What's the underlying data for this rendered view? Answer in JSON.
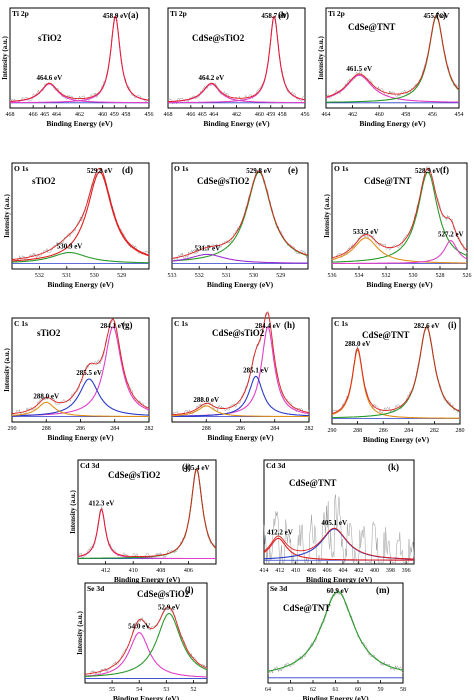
{
  "colors": {
    "pink": "#e040c8",
    "green": "#2a9a2a",
    "red": "#e02020",
    "blue": "#2a3cc8",
    "purple": "#9a30d0",
    "orange": "#e0901a",
    "grey": "#9a9a9a",
    "black": "#000000"
  },
  "chart_data": [
    {
      "type": "line",
      "panel_label": "(a)",
      "element": "Ti 2p",
      "sample": "sTiO2",
      "xlabel": "Binding Energy (eV)",
      "ylabel": "Intensity (a.u.)",
      "xlim": [
        468,
        456
      ],
      "xticks": [
        468,
        466,
        465,
        464,
        462,
        460,
        459,
        458,
        456
      ],
      "ymax": 1.1,
      "peaks": [
        {
          "center": 464.6,
          "height": 0.22,
          "width": 0.9,
          "color": "pink"
        },
        {
          "center": 458.9,
          "height": 1.0,
          "width": 0.5,
          "color": "pink"
        }
      ],
      "annotations": [
        {
          "text": "464.6 eV",
          "x": 464.6
        },
        {
          "text": "458.9 eV",
          "x": 458.9
        }
      ]
    },
    {
      "type": "line",
      "panel_label": "(b)",
      "element": "Ti 2p",
      "sample": "CdSe@sTiO2",
      "xlabel": "Binding Energy (eV)",
      "ylabel": "",
      "xlim": [
        468,
        456
      ],
      "xticks": [
        468,
        466,
        465,
        464,
        462,
        460,
        459,
        458,
        456
      ],
      "ymax": 1.1,
      "peaks": [
        {
          "center": 464.2,
          "height": 0.22,
          "width": 0.9,
          "color": "pink"
        },
        {
          "center": 458.7,
          "height": 1.0,
          "width": 0.5,
          "color": "pink"
        }
      ],
      "annotations": [
        {
          "text": "464.2 eV",
          "x": 464.2
        },
        {
          "text": "458.7 eV",
          "x": 458.7
        }
      ]
    },
    {
      "type": "line",
      "panel_label": "(c)",
      "element": "Ti 2p",
      "sample": "CdSe@TNT",
      "xlabel": "Binding Energy (eV)",
      "ylabel": "Intensity (a.u.)",
      "xlim": [
        464,
        454
      ],
      "xticks": [
        464,
        462,
        460,
        458,
        456,
        454
      ],
      "ymax": 1.1,
      "peaks": [
        {
          "center": 461.5,
          "height": 0.32,
          "width": 1.2,
          "color": "pink"
        },
        {
          "center": 455.7,
          "height": 1.0,
          "width": 0.7,
          "color": "green"
        }
      ],
      "annotations": [
        {
          "text": "461.5 eV",
          "x": 461.5
        },
        {
          "text": "455.7 eV",
          "x": 455.7
        }
      ]
    },
    {
      "type": "line",
      "panel_label": "(d)",
      "element": "O 1s",
      "sample": "sTiO2",
      "xlabel": "Binding Energy (eV)",
      "ylabel": "Intensity (a.u.)",
      "xlim": [
        533,
        528
      ],
      "xticks": [
        532,
        531,
        530,
        529
      ],
      "ymax": 1.1,
      "peaks": [
        {
          "center": 529.8,
          "height": 1.0,
          "width": 0.55,
          "color": "red"
        },
        {
          "center": 530.9,
          "height": 0.12,
          "width": 0.8,
          "color": "green"
        }
      ],
      "annotations": [
        {
          "text": "529.8 eV",
          "x": 529.8
        },
        {
          "text": "530.9 eV",
          "x": 530.9
        }
      ]
    },
    {
      "type": "line",
      "panel_label": "(e)",
      "element": "O 1s",
      "sample": "CdSe@sTiO2",
      "xlabel": "Binding Energy (eV)",
      "ylabel": "",
      "xlim": [
        533,
        528
      ],
      "xticks": [
        533,
        532,
        531,
        530,
        529
      ],
      "ymax": 1.1,
      "peaks": [
        {
          "center": 529.8,
          "height": 1.0,
          "width": 0.55,
          "color": "green"
        },
        {
          "center": 531.7,
          "height": 0.1,
          "width": 0.8,
          "color": "purple"
        }
      ],
      "annotations": [
        {
          "text": "529.8 eV",
          "x": 529.8
        },
        {
          "text": "531.7 eV",
          "x": 531.7
        }
      ]
    },
    {
      "type": "line",
      "panel_label": "(f)",
      "element": "O 1s",
      "sample": "CdSe@TNT",
      "xlabel": "Binding Energy (eV)",
      "ylabel": "Intensity (a.u.)",
      "xlim": [
        536,
        526
      ],
      "xticks": [
        536,
        534,
        532,
        530,
        528,
        526
      ],
      "ymax": 1.1,
      "peaks": [
        {
          "center": 528.9,
          "height": 1.0,
          "width": 0.9,
          "color": "green"
        },
        {
          "center": 533.5,
          "height": 0.28,
          "width": 1.1,
          "color": "orange"
        },
        {
          "center": 527.2,
          "height": 0.25,
          "width": 0.6,
          "color": "pink"
        }
      ],
      "annotations": [
        {
          "text": "528.9 eV",
          "x": 528.9
        },
        {
          "text": "533.5 eV",
          "x": 533.5
        },
        {
          "text": "527.2 eV",
          "x": 527.2
        }
      ]
    },
    {
      "type": "line",
      "panel_label": "(g)",
      "element": "C 1s",
      "sample": "sTiO2",
      "xlabel": "Binding Energy (eV)",
      "ylabel": "Intensity (a.u.)",
      "xlim": [
        290,
        282
      ],
      "xticks": [
        290,
        288,
        286,
        284,
        282
      ],
      "ymax": 1.1,
      "peaks": [
        {
          "center": 284.1,
          "height": 1.0,
          "width": 0.6,
          "color": "pink"
        },
        {
          "center": 285.5,
          "height": 0.42,
          "width": 0.7,
          "color": "blue"
        },
        {
          "center": 288.0,
          "height": 0.16,
          "width": 0.6,
          "color": "orange"
        }
      ],
      "annotations": [
        {
          "text": "284.1 eV",
          "x": 284.1
        },
        {
          "text": "285.5 eV",
          "x": 285.5
        },
        {
          "text": "288.0 eV",
          "x": 288.0
        }
      ]
    },
    {
      "type": "line",
      "panel_label": "(h)",
      "element": "C 1s",
      "sample": "CdSe@sTiO2",
      "xlabel": "Binding Energy (eV)",
      "ylabel": "",
      "xlim": [
        290,
        282
      ],
      "xticks": [
        288,
        286,
        284,
        282
      ],
      "ymax": 1.1,
      "peaks": [
        {
          "center": 284.4,
          "height": 1.0,
          "width": 0.45,
          "color": "pink"
        },
        {
          "center": 285.1,
          "height": 0.45,
          "width": 0.5,
          "color": "blue"
        },
        {
          "center": 288.0,
          "height": 0.12,
          "width": 0.6,
          "color": "orange"
        }
      ],
      "annotations": [
        {
          "text": "284.4 eV",
          "x": 284.4
        },
        {
          "text": "285.1 eV",
          "x": 285.1
        },
        {
          "text": "288.0 eV",
          "x": 288.0
        }
      ]
    },
    {
      "type": "line",
      "panel_label": "(i)",
      "element": "C 1s",
      "sample": "CdSe@TNT",
      "xlabel": "Binding Energy (eV)",
      "ylabel": "",
      "xlim": [
        290,
        280
      ],
      "xticks": [
        290,
        288,
        286,
        284,
        282,
        280
      ],
      "ymax": 1.1,
      "peaks": [
        {
          "center": 288.0,
          "height": 0.75,
          "width": 0.5,
          "color": "orange"
        },
        {
          "center": 282.6,
          "height": 1.0,
          "width": 0.75,
          "color": "green"
        }
      ],
      "annotations": [
        {
          "text": "288.0 eV",
          "x": 288.0
        },
        {
          "text": "282.6 eV",
          "x": 282.6
        }
      ]
    },
    {
      "type": "line",
      "panel_label": "(j)",
      "element": "Cd 3d",
      "sample": "CdSe@sTiO2",
      "xlabel": "Binding Energy (eV)",
      "ylabel": "Intensity (a.u.)",
      "xlim": [
        414,
        404
      ],
      "xticks": [
        412,
        410,
        408,
        406
      ],
      "ymax": 1.1,
      "peaks": [
        {
          "center": 412.3,
          "height": 0.55,
          "width": 0.35,
          "color": "pink"
        },
        {
          "center": 405.4,
          "height": 1.0,
          "width": 0.5,
          "color": "green"
        }
      ],
      "annotations": [
        {
          "text": "412.3 eV",
          "x": 412.3
        },
        {
          "text": "405.4 eV",
          "x": 405.4
        }
      ]
    },
    {
      "type": "line",
      "panel_label": "(k)",
      "element": "Cd 3d",
      "sample": "CdSe@TNT",
      "xlabel": "Binding Energy (eV)",
      "ylabel": "",
      "xlim": [
        414,
        395
      ],
      "xticks": [
        414,
        412,
        410,
        408,
        406,
        404,
        402,
        400,
        398,
        396
      ],
      "ymax": 1.6,
      "peaks": [
        {
          "center": 412.2,
          "height": 0.35,
          "width": 1.3,
          "color": "red"
        },
        {
          "center": 405.1,
          "height": 0.5,
          "width": 2.0,
          "color": "blue"
        }
      ],
      "annotations": [
        {
          "text": "412.2 eV",
          "x": 412.2
        },
        {
          "text": "405.1 eV",
          "x": 405.1
        }
      ]
    },
    {
      "type": "line",
      "panel_label": "(l)",
      "element": "Se 3d",
      "sample": "CdSe@sTiO2",
      "xlabel": "Binding Energy (eV)",
      "ylabel": "Intensity (a.u.)",
      "xlim": [
        56,
        51.5
      ],
      "xticks": [
        55,
        54,
        53,
        52
      ],
      "ymax": 1.25,
      "peaks": [
        {
          "center": 54.0,
          "height": 0.6,
          "width": 0.45,
          "color": "pink"
        },
        {
          "center": 52.9,
          "height": 0.85,
          "width": 0.55,
          "color": "green"
        }
      ],
      "annotations": [
        {
          "text": "54.0 eV",
          "x": 54.0
        },
        {
          "text": "52.9 eV",
          "x": 52.9
        }
      ]
    },
    {
      "type": "line",
      "panel_label": "(m)",
      "element": "Se 3d",
      "sample": "CdSe@TNT",
      "xlabel": "Binding Energy (eV)",
      "ylabel": "",
      "xlim": [
        64,
        58
      ],
      "xticks": [
        64,
        63,
        62,
        61,
        60,
        59,
        58
      ],
      "ymax": 1.1,
      "peaks": [
        {
          "center": 60.9,
          "height": 1.0,
          "width": 0.9,
          "color": "green"
        }
      ],
      "annotations": [
        {
          "text": "60.9 eV",
          "x": 60.9
        }
      ]
    }
  ]
}
